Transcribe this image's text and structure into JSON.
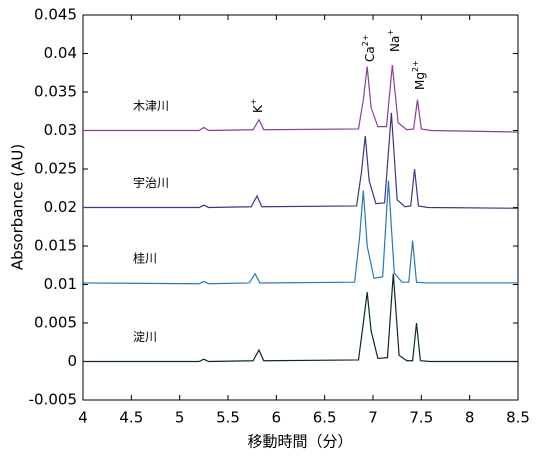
{
  "chart_data": {
    "type": "line",
    "xlabel": "移動時間（分）",
    "ylabel": "Absorbance (AU)",
    "xlim": [
      4,
      8.5
    ],
    "xticks": [
      4,
      4.5,
      5,
      5.5,
      6,
      6.5,
      7,
      7.5,
      8,
      8.5
    ],
    "ylim": [
      -0.005,
      0.045
    ],
    "yticks": [
      -0.005,
      0,
      0.005,
      0.01,
      0.015,
      0.02,
      0.025,
      0.03,
      0.035,
      0.04,
      0.045
    ],
    "grid": false,
    "annotations": [
      {
        "base": "K",
        "sup": "+"
      },
      {
        "base": "Ca",
        "sup": "2+"
      },
      {
        "base": "Na",
        "sup": "+"
      },
      {
        "base": "Mg",
        "sup": "2+"
      }
    ],
    "series": [
      {
        "name": "木津川",
        "color": "#8b3d9c",
        "x": [
          4.0,
          5.2,
          5.25,
          5.3,
          5.76,
          5.82,
          5.87,
          6.85,
          6.9,
          6.94,
          6.98,
          7.05,
          7.14,
          7.2,
          7.26,
          7.35,
          7.42,
          7.46,
          7.5,
          7.6,
          8.5
        ],
        "values": [
          0.03,
          0.03,
          0.0304,
          0.03,
          0.0301,
          0.0314,
          0.0301,
          0.0302,
          0.034,
          0.0383,
          0.033,
          0.0305,
          0.0305,
          0.0385,
          0.031,
          0.0301,
          0.0302,
          0.034,
          0.0302,
          0.03,
          0.0298
        ]
      },
      {
        "name": "宇治川",
        "color": "#3c3589",
        "x": [
          4.0,
          5.2,
          5.25,
          5.3,
          5.74,
          5.8,
          5.85,
          6.83,
          6.88,
          6.92,
          6.96,
          7.03,
          7.12,
          7.19,
          7.25,
          7.33,
          7.39,
          7.43,
          7.47,
          7.57,
          8.5
        ],
        "values": [
          0.02,
          0.02,
          0.0203,
          0.02,
          0.0201,
          0.0215,
          0.0201,
          0.0202,
          0.0245,
          0.0293,
          0.0235,
          0.0205,
          0.0206,
          0.0323,
          0.021,
          0.0201,
          0.0202,
          0.025,
          0.0202,
          0.02,
          0.0199
        ]
      },
      {
        "name": "桂川",
        "color": "#2a78b8",
        "x": [
          4.0,
          5.2,
          5.25,
          5.3,
          5.72,
          5.78,
          5.83,
          6.81,
          6.86,
          6.9,
          6.94,
          7.01,
          7.1,
          7.16,
          7.22,
          7.3,
          7.37,
          7.41,
          7.45,
          7.55,
          8.5
        ],
        "values": [
          0.0102,
          0.0101,
          0.0104,
          0.0101,
          0.0102,
          0.0114,
          0.0102,
          0.0103,
          0.016,
          0.0222,
          0.015,
          0.0108,
          0.011,
          0.0235,
          0.0115,
          0.0103,
          0.0103,
          0.0157,
          0.0103,
          0.0102,
          0.0102
        ]
      },
      {
        "name": "淀川",
        "color": "#0a2a2a",
        "x": [
          4.0,
          5.2,
          5.25,
          5.3,
          5.76,
          5.82,
          5.87,
          6.85,
          6.9,
          6.94,
          6.98,
          7.05,
          7.15,
          7.21,
          7.27,
          7.35,
          7.41,
          7.45,
          7.49,
          7.59,
          8.5
        ],
        "values": [
          0.0,
          0.0,
          0.0003,
          0.0,
          0.0001,
          0.0015,
          0.0001,
          0.0002,
          0.005,
          0.009,
          0.004,
          0.0004,
          0.0005,
          0.0114,
          0.0008,
          0.0001,
          0.0001,
          0.005,
          0.0001,
          0.0,
          0.0
        ]
      }
    ]
  }
}
